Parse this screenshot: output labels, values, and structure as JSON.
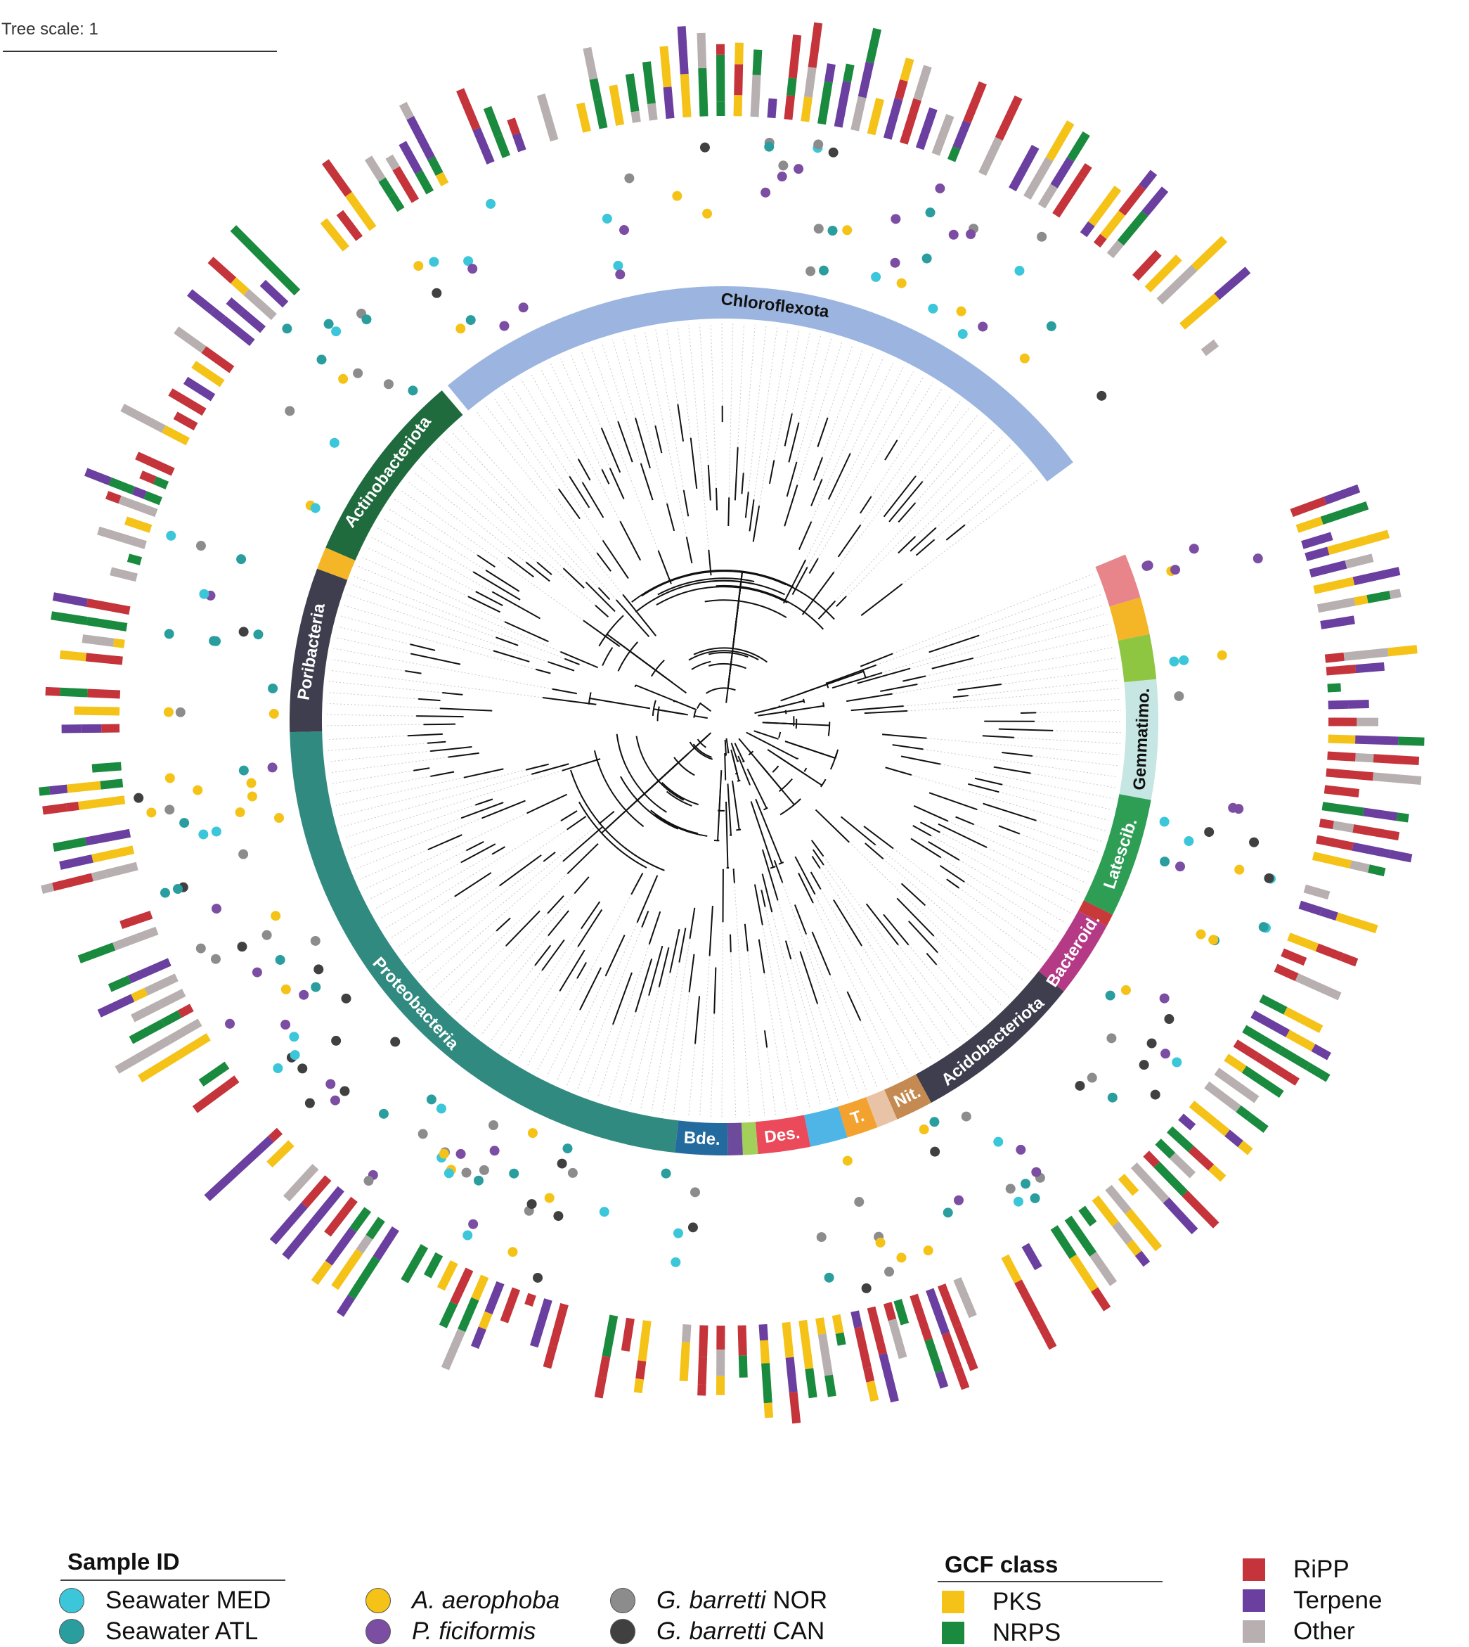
{
  "tree_scale": {
    "label": "Tree scale: 1"
  },
  "clades": [
    {
      "label": "Chloroflexota",
      "color": "#9bb5e0",
      "text_color": "#111111"
    },
    {
      "label": "",
      "color": "#e8858a"
    },
    {
      "label": "",
      "color": "#f4b526"
    },
    {
      "label": "",
      "color": "#8ec642"
    },
    {
      "label": "Gemmatimo.",
      "color": "#c5e6e2",
      "text_color": "#111111"
    },
    {
      "label": "Latescib.",
      "color": "#2e9e55",
      "text_color": "#ffffff"
    },
    {
      "label": "",
      "color": "#c83a3a"
    },
    {
      "label": "Bacteroid.",
      "color": "#b53a86",
      "text_color": "#ffffff"
    },
    {
      "label": "Acidobacteriota",
      "color": "#3e3e4f",
      "text_color": "#ffffff"
    },
    {
      "label": "Nit.",
      "color": "#c48a52",
      "text_color": "#ffffff"
    },
    {
      "label": "",
      "color": "#e9c3a5"
    },
    {
      "label": "T.",
      "color": "#f3a12f",
      "text_color": "#ffffff"
    },
    {
      "label": "",
      "color": "#4fb5e6"
    },
    {
      "label": "Des.",
      "color": "#ea4a5a",
      "text_color": "#ffffff"
    },
    {
      "label": "",
      "color": "#a3cf5b"
    },
    {
      "label": "",
      "color": "#6d4b9c"
    },
    {
      "label": "Bde.",
      "color": "#236b9e",
      "text_color": "#ffffff"
    },
    {
      "label": "Proteobacteria",
      "color": "#318a80",
      "text_color": "#ffffff"
    },
    {
      "label": "Poribacteria",
      "color": "#3e3e4f",
      "text_color": "#ffffff"
    },
    {
      "label": "",
      "color": "#f4b526"
    },
    {
      "label": "Actinobacteriota",
      "color": "#1f6b3e",
      "text_color": "#ffffff"
    }
  ],
  "legend_sample": {
    "title": "Sample ID",
    "items": [
      {
        "label": "Seawater MED",
        "color": "#3bc6d9",
        "style": "normal"
      },
      {
        "label": "Seawater ATL",
        "color": "#2a9e9e",
        "style": "normal"
      },
      {
        "label": "A. aerophoba",
        "color": "#f5c217",
        "style": "italic"
      },
      {
        "label": "P. ficiformis",
        "color": "#7b4da3",
        "style": "italic"
      },
      {
        "label_italic": "G. barretti",
        "label_rest": " NOR",
        "color": "#8c8c8c"
      },
      {
        "label_italic": "G. barretti",
        "label_rest": " CAN",
        "color": "#404040"
      }
    ]
  },
  "legend_gcf": {
    "title": "GCF class",
    "items": [
      {
        "label": "PKS",
        "color": "#f5c217"
      },
      {
        "label": "NRPS",
        "color": "#1a8a3e"
      },
      {
        "label": "RiPP",
        "color": "#c4343a"
      },
      {
        "label": "Terpene",
        "color": "#6a3fa0"
      },
      {
        "label": "Other",
        "color": "#b8b0b0"
      }
    ]
  }
}
